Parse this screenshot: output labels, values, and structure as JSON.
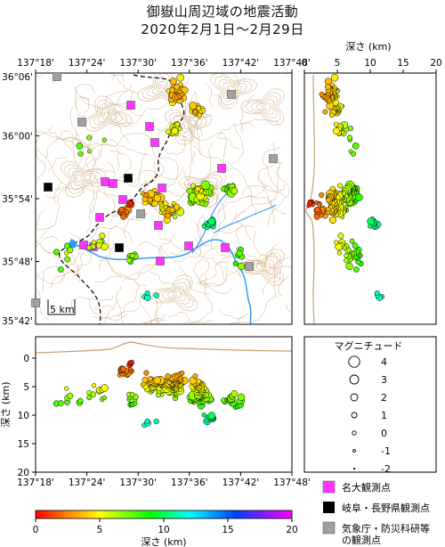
{
  "title": {
    "line1": "御嶽山周辺域の地震活動",
    "line2": "2020年2月1日～2月29日"
  },
  "map": {
    "lon_ticks": [
      "137°18'",
      "137°24'",
      "137°30'",
      "137°36'",
      "137°42'",
      "137°48'"
    ],
    "lat_ticks": [
      "36°06'",
      "36°00'",
      "35°54'",
      "35°48'",
      "35°42'"
    ],
    "scale_label": "5 km"
  },
  "depth_right": {
    "title": "深さ (km)",
    "ticks": [
      "0",
      "5",
      "10",
      "15",
      "20"
    ]
  },
  "depth_bottom": {
    "ylabel": "深さ (km)",
    "yticks": [
      "0",
      "5",
      "10",
      "15",
      "20"
    ],
    "lon_ticks": [
      "137°18'",
      "137°24'",
      "137°30'",
      "137°36'",
      "137°42'",
      "137°48'"
    ]
  },
  "magnitude_legend": {
    "title": "マグニチュード",
    "items": [
      {
        "label": "4"
      },
      {
        "label": "3"
      },
      {
        "label": "2"
      },
      {
        "label": "1"
      },
      {
        "label": "0"
      },
      {
        "label": "-1"
      },
      {
        "label": "-2"
      }
    ]
  },
  "station_legend": {
    "items": [
      {
        "label": "名大観測点",
        "color": "#ff33ff"
      },
      {
        "label": "岐阜・長野県観測点",
        "color": "#000000"
      },
      {
        "label": "気象庁・防災科研等",
        "label2": "の観測点",
        "color": "#a0a0a0"
      }
    ]
  },
  "colorbar": {
    "label": "深さ (km)",
    "ticks": [
      "0",
      "5",
      "10",
      "15",
      "20"
    ]
  },
  "colors": {
    "contour": "#c8a070",
    "river": "#3399ff",
    "boundary": "#000000"
  }
}
